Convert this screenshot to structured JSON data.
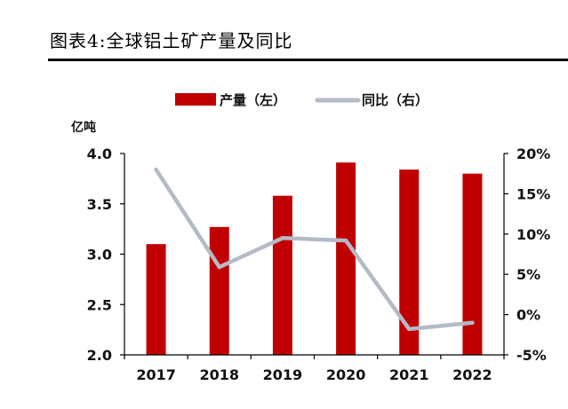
{
  "title": "图表4:全球铝土矿产量及同比",
  "colors": {
    "bar": "#c00000",
    "line": "#b4bac6",
    "axis": "#000000",
    "text": "#111111"
  },
  "chart_data": {
    "type": "bar+line",
    "title": "图表4:全球铝土矿产量及同比",
    "categories": [
      "2017",
      "2018",
      "2019",
      "2020",
      "2021",
      "2022"
    ],
    "y_left": {
      "label": "亿吨",
      "range": [
        2.0,
        4.0
      ],
      "ticks": [
        "2.0",
        "2.5",
        "3.0",
        "3.5",
        "4.0"
      ],
      "tick_values": [
        2.0,
        2.5,
        3.0,
        3.5,
        4.0
      ]
    },
    "y_right": {
      "range": [
        -5,
        20
      ],
      "ticks": [
        "-5%",
        "0%",
        "5%",
        "10%",
        "15%",
        "20%"
      ],
      "tick_values": [
        -5,
        0,
        5,
        10,
        15,
        20
      ]
    },
    "series": [
      {
        "name": "产量（左）",
        "type": "bar",
        "axis": "left",
        "values": [
          3.1,
          3.27,
          3.58,
          3.91,
          3.84,
          3.8
        ]
      },
      {
        "name": "同比（右）",
        "type": "line",
        "axis": "right",
        "values": [
          18.0,
          5.9,
          9.5,
          9.2,
          -1.8,
          -1.0
        ]
      }
    ],
    "legend": {
      "bar_label": "产量（左）",
      "line_label": "同比（右）",
      "placement": "top-center"
    }
  }
}
